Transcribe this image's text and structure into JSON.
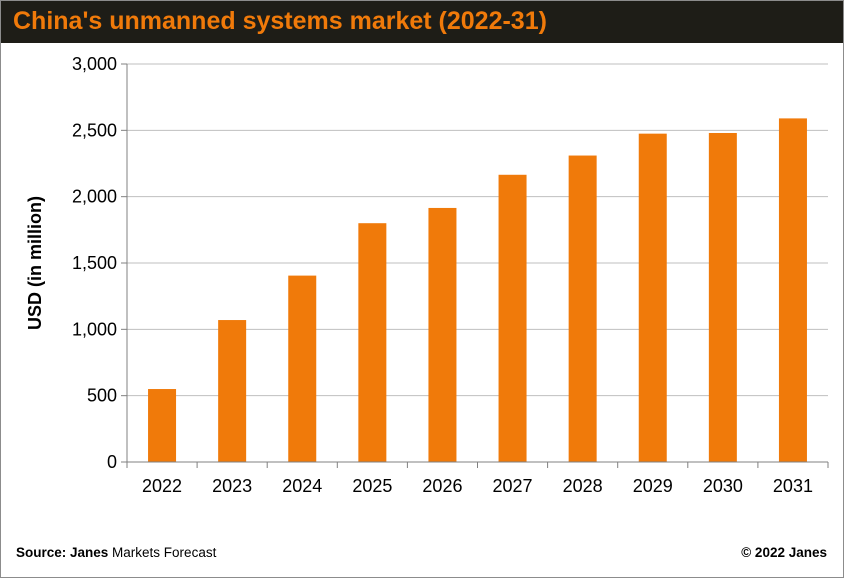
{
  "chart_data": {
    "type": "bar",
    "title": "China's unmanned systems market (2022-31)",
    "ylabel": "USD (in million)",
    "xlabel": "",
    "categories": [
      "2022",
      "2023",
      "2024",
      "2025",
      "2026",
      "2027",
      "2028",
      "2029",
      "2030",
      "2031"
    ],
    "values": [
      550,
      1070,
      1405,
      1800,
      1915,
      2165,
      2310,
      2475,
      2480,
      2590
    ],
    "ylim": [
      0,
      3000
    ],
    "yticks": [
      0,
      500,
      1000,
      1500,
      2000,
      2500,
      3000
    ],
    "ytick_labels": [
      "0",
      "500",
      "1,000",
      "1,500",
      "2,000",
      "2,500",
      "3,000"
    ],
    "grid": true,
    "legend": "none",
    "bar_color": "#f07a0a"
  },
  "footer": {
    "source_label": "Source: Janes",
    "source_rest": " Markets Forecast",
    "copyright": "© 2022 Janes"
  },
  "colors": {
    "title_bar": "#1e1d17",
    "title_text": "#f07a0a",
    "gridline": "#bfbfbf"
  }
}
